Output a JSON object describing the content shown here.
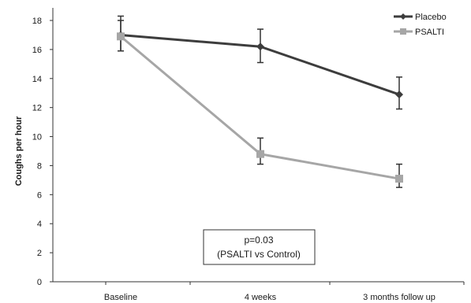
{
  "chart_data": {
    "type": "line",
    "ylabel": "Coughs per hour",
    "xlabel": "",
    "categories": [
      "Baseline",
      "4 weeks",
      "3 months follow up"
    ],
    "ylim": [
      0,
      18
    ],
    "yticks": [
      0,
      2,
      4,
      6,
      8,
      10,
      12,
      14,
      16,
      18
    ],
    "grid": false,
    "legend_position": "top-right",
    "series": [
      {
        "name": "Placebo",
        "marker": "diamond",
        "color": "#3d3d3d",
        "values": [
          17.0,
          16.2,
          12.9
        ],
        "error_upper": [
          18.3,
          17.4,
          14.1
        ],
        "error_lower": [
          15.9,
          15.1,
          11.9
        ]
      },
      {
        "name": "PSALTI",
        "marker": "square",
        "color": "#a6a6a6",
        "values": [
          16.9,
          8.8,
          7.1
        ],
        "error_upper": [
          18.0,
          9.9,
          8.1
        ],
        "error_lower": [
          15.9,
          8.1,
          6.5
        ]
      }
    ],
    "annotation": {
      "line1": "p=0.03",
      "line2": "(PSALTI vs Control)"
    }
  }
}
